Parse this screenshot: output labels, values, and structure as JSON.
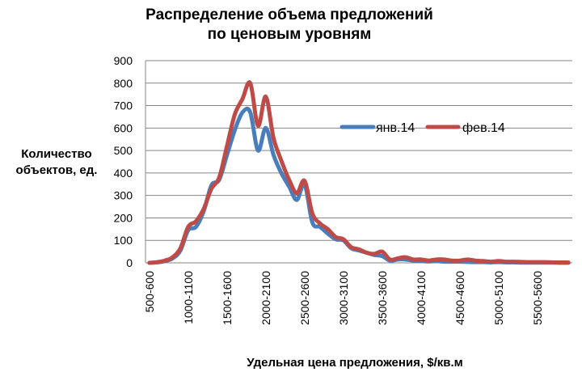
{
  "chart_data": {
    "type": "line",
    "title": [
      "Распределение объема предложений",
      "по ценовым уровням"
    ],
    "ylabel": [
      "Количество",
      "объектов, ед."
    ],
    "xlabel": "Удельная цена предложения, $/кв.м",
    "ylim": [
      0,
      900
    ],
    "yticks": [
      0,
      100,
      200,
      300,
      400,
      500,
      600,
      700,
      800,
      900
    ],
    "grid": true,
    "legend_position": "right",
    "categories": [
      "500-600",
      "600-700",
      "700-800",
      "800-900",
      "900-1000",
      "1000-1100",
      "1100-1200",
      "1200-1300",
      "1300-1400",
      "1400-1500",
      "1500-1600",
      "1600-1700",
      "1700-1800",
      "1800-1900",
      "1900-2000",
      "2000-2100",
      "2100-2200",
      "2200-2300",
      "2300-2400",
      "2400-2500",
      "2500-2600",
      "2600-2700",
      "2700-2800",
      "2800-2900",
      "2900-3000",
      "3000-3100",
      "3100-3200",
      "3200-3300",
      "3300-3400",
      "3400-3500",
      "3500-3600",
      "3600-3700",
      "3700-3800",
      "3800-3900",
      "3900-4000",
      "4000-4100",
      "4100-4200",
      "4200-4300",
      "4300-4400",
      "4400-4500",
      "4500-4600",
      "4600-4700",
      "4700-4800",
      "4800-4900",
      "4900-5000",
      "5000-5100",
      "5100-5200",
      "5200-5300",
      "5300-5400",
      "5400-5500",
      "5500-5600",
      "5600-5700",
      "5700-5800",
      "5800-5900",
      "5900-6000"
    ],
    "tick_labels": [
      "500-600",
      "1000-1100",
      "1500-1600",
      "2000-2100",
      "2500-2600",
      "3000-3100",
      "3500-3600",
      "4000-4100",
      "4500-4600",
      "5000-5100",
      "5500-5600"
    ],
    "series": [
      {
        "name": "янв.14",
        "color": "#4a7ebb",
        "values": [
          0,
          2,
          8,
          20,
          55,
          145,
          160,
          230,
          345,
          370,
          480,
          590,
          670,
          670,
          500,
          600,
          480,
          400,
          340,
          280,
          350,
          180,
          160,
          130,
          105,
          100,
          65,
          55,
          45,
          35,
          30,
          10,
          15,
          15,
          10,
          8,
          6,
          8,
          5,
          5,
          5,
          4,
          3,
          3,
          2,
          3,
          2,
          2,
          1,
          1,
          1,
          1,
          1,
          0,
          0
        ]
      },
      {
        "name": "фев.14",
        "color": "#be4b48",
        "values": [
          0,
          3,
          10,
          25,
          65,
          160,
          185,
          240,
          330,
          380,
          520,
          660,
          730,
          800,
          610,
          740,
          555,
          455,
          370,
          310,
          365,
          220,
          175,
          150,
          115,
          105,
          70,
          60,
          45,
          40,
          50,
          15,
          20,
          25,
          15,
          15,
          10,
          15,
          15,
          10,
          10,
          15,
          10,
          8,
          5,
          8,
          5,
          5,
          4,
          3,
          3,
          3,
          2,
          2,
          2
        ]
      }
    ]
  }
}
